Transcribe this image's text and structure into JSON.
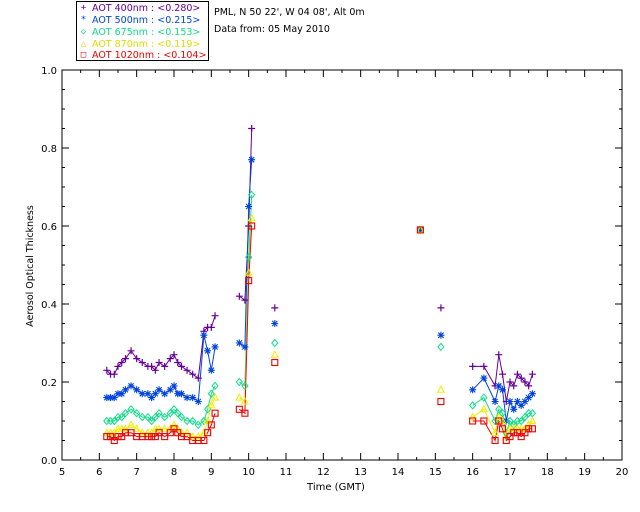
{
  "header": {
    "location": "PML, N 50 22', W 04 08', Alt 0m",
    "date_text": "Data from: 05 May 2010"
  },
  "legend": [
    {
      "label": "AOT  400nm : <0.280>",
      "color": "#660099",
      "symbol": "+"
    },
    {
      "label": "AOT  500nm : <0.215>",
      "color": "#0044dd",
      "symbol": "*"
    },
    {
      "label": "AOT  675nm : <0.153>",
      "color": "#11dd88",
      "symbol": "◇"
    },
    {
      "label": "AOT  870nm : <0.119>",
      "color": "#eeee00",
      "symbol": "△"
    },
    {
      "label": "AOT 1020nm : <0.104>",
      "color": "#ee0000",
      "symbol": "□"
    }
  ],
  "chart_data": {
    "type": "line",
    "xlabel": "Time (GMT)",
    "ylabel": "Aerosol Optical Thickness",
    "xlim": [
      5,
      20
    ],
    "ylim": [
      0.0,
      1.0
    ],
    "x_ticks": [
      5,
      6,
      7,
      8,
      9,
      10,
      11,
      12,
      13,
      14,
      15,
      16,
      17,
      18,
      19,
      20
    ],
    "y_ticks": [
      0.0,
      0.2,
      0.4,
      0.6,
      0.8,
      1.0
    ],
    "y_tick_labels": [
      "0.0",
      "0.2",
      "0.4",
      "0.6",
      "0.8",
      "1.0"
    ],
    "legend_position": "outside top-left",
    "x": [
      6.2,
      6.3,
      6.4,
      6.5,
      6.6,
      6.7,
      6.85,
      7.0,
      7.15,
      7.3,
      7.4,
      7.5,
      7.6,
      7.75,
      7.9,
      8.0,
      8.1,
      8.2,
      8.35,
      8.5,
      8.65,
      8.8,
      8.9,
      9.0,
      9.1,
      9.75,
      9.9,
      10.0,
      10.08,
      10.7,
      14.6,
      15.15,
      16.0,
      16.3,
      16.6,
      16.7,
      16.8,
      16.9,
      17.0,
      17.1,
      17.2,
      17.3,
      17.4,
      17.5,
      17.6
    ],
    "series": [
      {
        "name": "AOT  400nm : <0.280>",
        "values": [
          0.23,
          0.22,
          0.22,
          0.24,
          0.25,
          0.26,
          0.28,
          0.26,
          0.25,
          0.24,
          0.24,
          0.23,
          0.25,
          0.24,
          0.26,
          0.27,
          0.25,
          0.24,
          0.23,
          0.22,
          0.21,
          0.33,
          0.34,
          0.34,
          0.37,
          0.42,
          0.41,
          0.6,
          0.85,
          0.39,
          0.59,
          0.39,
          0.24,
          0.24,
          0.19,
          0.27,
          0.22,
          0.15,
          0.2,
          0.19,
          0.22,
          0.21,
          0.2,
          0.19,
          0.22
        ]
      },
      {
        "name": "AOT  500nm : <0.215>",
        "values": [
          0.16,
          0.16,
          0.16,
          0.17,
          0.17,
          0.18,
          0.19,
          0.18,
          0.17,
          0.17,
          0.16,
          0.17,
          0.18,
          0.17,
          0.18,
          0.19,
          0.17,
          0.17,
          0.16,
          0.16,
          0.15,
          0.32,
          0.28,
          0.23,
          0.29,
          0.3,
          0.29,
          0.65,
          0.77,
          0.35,
          0.59,
          0.32,
          0.18,
          0.21,
          0.15,
          0.19,
          0.18,
          0.1,
          0.15,
          0.13,
          0.15,
          0.14,
          0.15,
          0.16,
          0.17
        ]
      },
      {
        "name": "AOT  675nm : <0.153>",
        "values": [
          0.1,
          0.1,
          0.1,
          0.11,
          0.11,
          0.12,
          0.13,
          0.12,
          0.11,
          0.11,
          0.1,
          0.11,
          0.12,
          0.11,
          0.12,
          0.13,
          0.12,
          0.11,
          0.1,
          0.1,
          0.09,
          0.1,
          0.13,
          0.17,
          0.19,
          0.2,
          0.19,
          0.52,
          0.68,
          0.3,
          0.59,
          0.29,
          0.14,
          0.16,
          0.1,
          0.13,
          0.12,
          0.07,
          0.1,
          0.09,
          0.1,
          0.1,
          0.11,
          0.12,
          0.12
        ]
      },
      {
        "name": "AOT  870nm : <0.119>",
        "values": [
          0.07,
          0.07,
          0.07,
          0.08,
          0.08,
          0.08,
          0.09,
          0.08,
          0.07,
          0.07,
          0.07,
          0.08,
          0.08,
          0.08,
          0.08,
          0.09,
          0.08,
          0.07,
          0.07,
          0.06,
          0.06,
          0.07,
          0.1,
          0.14,
          0.16,
          0.16,
          0.15,
          0.48,
          0.62,
          0.27,
          0.59,
          0.18,
          0.11,
          0.13,
          0.07,
          0.11,
          0.1,
          0.06,
          0.08,
          0.08,
          0.08,
          0.08,
          0.08,
          0.09,
          0.1
        ]
      },
      {
        "name": "AOT 1020nm : <0.104>",
        "values": [
          0.06,
          0.06,
          0.05,
          0.06,
          0.06,
          0.07,
          0.07,
          0.06,
          0.06,
          0.06,
          0.06,
          0.06,
          0.07,
          0.06,
          0.07,
          0.08,
          0.07,
          0.06,
          0.06,
          0.05,
          0.05,
          0.05,
          0.07,
          0.09,
          0.12,
          0.13,
          0.12,
          0.46,
          0.6,
          0.25,
          0.59,
          0.15,
          0.1,
          0.1,
          0.05,
          0.1,
          0.08,
          0.05,
          0.06,
          0.07,
          0.07,
          0.06,
          0.07,
          0.08,
          0.08
        ]
      }
    ]
  }
}
